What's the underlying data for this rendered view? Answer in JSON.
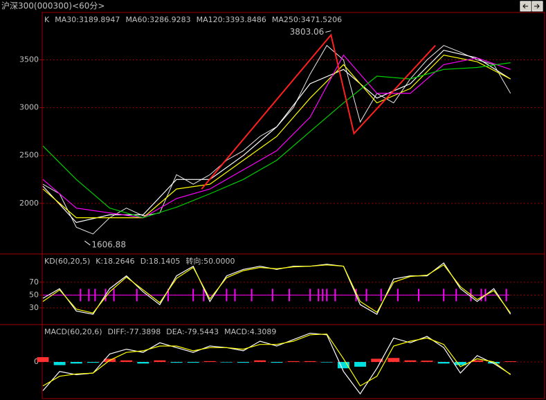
{
  "window_title": "沪深300(000300)<60分>",
  "chart_data": [
    {
      "type": "line",
      "panel": "price",
      "tag": "K",
      "xlim": [
        0,
        240
      ],
      "ylim": [
        1478,
        3988
      ],
      "yticks": [
        2000,
        2500,
        3000,
        3500
      ],
      "grid": true,
      "close": {
        "color": "#e8e8e8",
        "x": [
          0,
          8,
          16,
          24,
          32,
          40,
          48,
          56,
          64,
          72,
          80,
          88,
          96,
          104,
          112,
          120,
          128,
          136,
          144,
          152,
          160,
          168,
          176,
          184,
          192,
          200,
          208,
          216,
          224
        ],
        "values": [
          2200,
          2100,
          1750,
          1680,
          1850,
          1950,
          1870,
          1900,
          2300,
          2200,
          2300,
          2450,
          2550,
          2700,
          2800,
          3000,
          3350,
          3650,
          3500,
          2850,
          3150,
          3050,
          3300,
          3500,
          3650,
          3580,
          3500,
          3450,
          3150
        ]
      },
      "series": [
        {
          "label": "MA30:3189.8947",
          "color": "#ffffff",
          "x": [
            0,
            16,
            32,
            48,
            64,
            80,
            96,
            112,
            128,
            144,
            160,
            176,
            192,
            208,
            224
          ],
          "values": [
            2180,
            1800,
            1880,
            1880,
            2250,
            2250,
            2500,
            2800,
            3250,
            3400,
            3100,
            3250,
            3600,
            3520,
            3300
          ]
        },
        {
          "label": "MA60:3286.9283",
          "color": "#ffff00",
          "x": [
            0,
            16,
            32,
            48,
            64,
            80,
            96,
            112,
            128,
            144,
            160,
            176,
            192,
            208,
            224
          ],
          "values": [
            2150,
            1850,
            1850,
            1850,
            2150,
            2200,
            2450,
            2700,
            3100,
            3450,
            3050,
            3200,
            3550,
            3480,
            3300
          ]
        },
        {
          "label": "MA120:3393.8486",
          "color": "#ff00ff",
          "x": [
            0,
            16,
            32,
            48,
            64,
            80,
            96,
            112,
            128,
            144,
            160,
            176,
            192,
            208,
            224
          ],
          "values": [
            2250,
            1950,
            1900,
            1850,
            2050,
            2150,
            2350,
            2550,
            2900,
            3550,
            3150,
            3150,
            3450,
            3520,
            3400
          ]
        },
        {
          "label": "MA250:3471.5206",
          "color": "#00d000",
          "x": [
            0,
            16,
            32,
            48,
            64,
            80,
            96,
            112,
            128,
            144,
            160,
            176,
            192,
            208,
            224
          ],
          "values": [
            2600,
            2250,
            1950,
            1850,
            1960,
            2100,
            2250,
            2450,
            2750,
            3050,
            3330,
            3300,
            3400,
            3420,
            3470
          ]
        }
      ],
      "trend_line": {
        "color": "#ff2020",
        "x": [
          76,
          138,
          149,
          188
        ],
        "values": [
          2150,
          3760,
          2730,
          3650
        ]
      },
      "annotations": [
        {
          "x": 138,
          "value": 3803.06,
          "side": "left"
        },
        {
          "x": 20,
          "value": 1606.88,
          "side": "right"
        }
      ]
    },
    {
      "type": "line",
      "panel": "kd",
      "tag": "KD(60,20,5)",
      "xlim": [
        0,
        240
      ],
      "ylim": [
        5,
        113
      ],
      "yticks": [
        30,
        50,
        70
      ],
      "grid": true,
      "series": [
        {
          "label": "K:18.2646",
          "color": "#ffffff",
          "x": [
            0,
            8,
            16,
            24,
            32,
            40,
            48,
            56,
            64,
            72,
            80,
            88,
            96,
            104,
            112,
            120,
            128,
            136,
            144,
            152,
            160,
            168,
            176,
            184,
            192,
            200,
            208,
            216,
            224
          ],
          "values": [
            45,
            60,
            25,
            20,
            60,
            80,
            55,
            35,
            80,
            95,
            40,
            80,
            90,
            95,
            90,
            95,
            95,
            98,
            95,
            35,
            20,
            75,
            80,
            80,
            100,
            60,
            40,
            60,
            20
          ]
        },
        {
          "label": "D:18.1405",
          "color": "#ffff00",
          "x": [
            0,
            8,
            16,
            24,
            32,
            40,
            48,
            56,
            64,
            72,
            80,
            88,
            96,
            104,
            112,
            120,
            128,
            136,
            144,
            152,
            160,
            168,
            176,
            184,
            192,
            200,
            208,
            216,
            224
          ],
          "values": [
            40,
            58,
            28,
            22,
            55,
            78,
            58,
            38,
            76,
            93,
            44,
            77,
            88,
            93,
            91,
            94,
            95,
            97,
            95,
            40,
            23,
            70,
            79,
            81,
            97,
            63,
            43,
            57,
            22
          ]
        }
      ],
      "turn": {
        "label": "转向:50.0000",
        "value": 50,
        "color": "#ff00ff",
        "x": [
          18,
          22,
          25,
          30,
          34,
          45,
          60,
          72,
          77,
          88,
          92,
          100,
          110,
          118,
          128,
          132,
          134,
          136,
          140,
          150,
          155,
          162,
          170,
          180,
          192,
          198,
          205,
          210,
          212,
          222
        ]
      }
    },
    {
      "type": "macd",
      "panel": "macd",
      "tag": "MACD(60,20,6)",
      "xlim": [
        0,
        240
      ],
      "ylim": [
        -230,
        230
      ],
      "yticks": [
        0
      ],
      "grid": true,
      "series": [
        {
          "label": "DIFF:-77.3898",
          "color": "#ffffff",
          "x": [
            0,
            8,
            16,
            24,
            32,
            40,
            48,
            56,
            64,
            72,
            80,
            88,
            96,
            104,
            112,
            120,
            128,
            136,
            144,
            152,
            160,
            168,
            176,
            184,
            192,
            200,
            208,
            216,
            224
          ],
          "values": [
            -180,
            -60,
            -80,
            -70,
            50,
            80,
            60,
            120,
            90,
            60,
            100,
            90,
            70,
            130,
            100,
            140,
            180,
            170,
            -60,
            -200,
            -40,
            150,
            120,
            160,
            90,
            -70,
            40,
            -10,
            -77
          ]
        },
        {
          "label": "DEA:-79.5443",
          "color": "#ffff00",
          "x": [
            0,
            8,
            16,
            24,
            32,
            40,
            48,
            56,
            64,
            72,
            80,
            88,
            96,
            104,
            112,
            120,
            128,
            136,
            144,
            152,
            160,
            168,
            176,
            184,
            192,
            200,
            208,
            216,
            224
          ],
          "values": [
            -150,
            -90,
            -75,
            -70,
            10,
            60,
            70,
            100,
            100,
            70,
            90,
            90,
            80,
            110,
            110,
            130,
            170,
            175,
            20,
            -150,
            -90,
            100,
            130,
            150,
            110,
            -30,
            20,
            0,
            -80
          ]
        }
      ],
      "histogram": {
        "label": "MACD:4.3089",
        "up_color": "#ff3030",
        "down_color": "#00e0e0",
        "x": [
          0,
          8,
          16,
          24,
          32,
          40,
          48,
          56,
          64,
          72,
          80,
          88,
          96,
          104,
          112,
          120,
          128,
          136,
          144,
          152,
          160,
          168,
          176,
          184,
          192,
          200,
          208,
          216,
          224
        ],
        "values": [
          30,
          -20,
          -10,
          -5,
          20,
          10,
          -10,
          10,
          -5,
          -5,
          5,
          -3,
          -5,
          10,
          -5,
          5,
          5,
          -3,
          -40,
          -30,
          20,
          25,
          10,
          8,
          -10,
          -20,
          10,
          -10,
          4
        ]
      }
    }
  ]
}
